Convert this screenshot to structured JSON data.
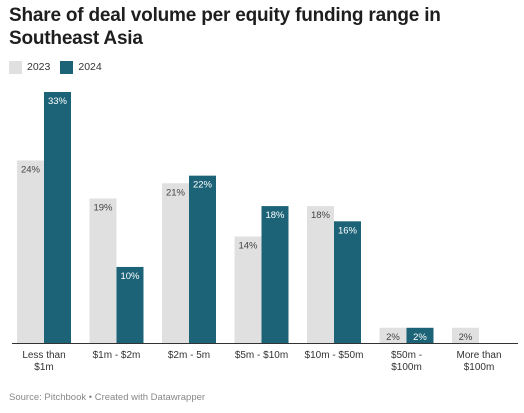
{
  "header": {
    "title": "Share of deal volume per equity funding range in Southeast Asia"
  },
  "legend": {
    "items": [
      {
        "label": "2023",
        "color": "#e0e0e0"
      },
      {
        "label": "2024",
        "color": "#1c6378"
      }
    ]
  },
  "chart_data": {
    "type": "bar",
    "categories": [
      [
        "Less than",
        "$1m"
      ],
      [
        "$1m - $2m"
      ],
      [
        "$2m - 5m"
      ],
      [
        "$5m - $10m"
      ],
      [
        "$10m - $50m"
      ],
      [
        "$50m -",
        "$100m"
      ],
      [
        "More than",
        "$100m"
      ]
    ],
    "series": [
      {
        "name": "2023",
        "color": "#e0e0e0",
        "label_color": "#444444",
        "values": [
          24,
          19,
          21,
          14,
          18,
          2,
          2
        ],
        "labels": [
          "24%",
          "19%",
          "21%",
          "14%",
          "18%",
          "2%",
          "2%"
        ]
      },
      {
        "name": "2024",
        "color": "#1c6378",
        "label_color": "#ffffff",
        "values": [
          33,
          10,
          22,
          18,
          16,
          2,
          0
        ],
        "labels": [
          "33%",
          "10%",
          "22%",
          "18%",
          "16%",
          "2%",
          ""
        ]
      }
    ],
    "title": "Share of deal volume per equity funding range in Southeast Asia",
    "xlabel": "",
    "ylabel": "",
    "ylim": [
      0,
      33
    ],
    "grid": false,
    "legend_position": "top-left"
  },
  "footer": {
    "text": "Source: Pitchbook • Created with Datawrapper"
  }
}
